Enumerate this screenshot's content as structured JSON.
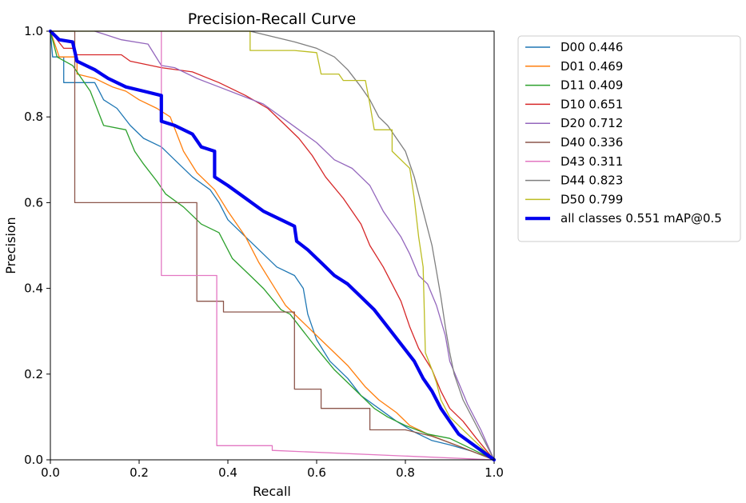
{
  "chart_data": {
    "type": "line",
    "title": "Precision-Recall Curve",
    "xlabel": "Recall",
    "ylabel": "Precision",
    "xlim": [
      0,
      1
    ],
    "ylim": [
      0,
      1
    ],
    "xticks": [
      "0.0",
      "0.2",
      "0.4",
      "0.6",
      "0.8",
      "1.0"
    ],
    "yticks": [
      "0.0",
      "0.2",
      "0.4",
      "0.6",
      "0.8",
      "1.0"
    ],
    "legend_position": "outside-right-top",
    "series": [
      {
        "name": "D00",
        "label": "D00 0.446",
        "ap": 0.446,
        "color": "#1f77b4",
        "width": 1.3,
        "points": [
          [
            0,
            1.0
          ],
          [
            0.005,
            0.94
          ],
          [
            0.03,
            0.94
          ],
          [
            0.03,
            0.88
          ],
          [
            0.1,
            0.88
          ],
          [
            0.12,
            0.84
          ],
          [
            0.15,
            0.82
          ],
          [
            0.18,
            0.78
          ],
          [
            0.21,
            0.75
          ],
          [
            0.25,
            0.73
          ],
          [
            0.28,
            0.7
          ],
          [
            0.32,
            0.66
          ],
          [
            0.36,
            0.63
          ],
          [
            0.38,
            0.6
          ],
          [
            0.4,
            0.56
          ],
          [
            0.44,
            0.52
          ],
          [
            0.48,
            0.48
          ],
          [
            0.51,
            0.45
          ],
          [
            0.55,
            0.43
          ],
          [
            0.57,
            0.4
          ],
          [
            0.58,
            0.34
          ],
          [
            0.6,
            0.28
          ],
          [
            0.63,
            0.23
          ],
          [
            0.67,
            0.19
          ],
          [
            0.7,
            0.15
          ],
          [
            0.74,
            0.12
          ],
          [
            0.78,
            0.09
          ],
          [
            0.82,
            0.065
          ],
          [
            0.86,
            0.045
          ],
          [
            0.9,
            0.035
          ],
          [
            0.95,
            0.02
          ],
          [
            1.0,
            0.0
          ]
        ]
      },
      {
        "name": "D01",
        "label": "D01 0.469",
        "ap": 0.469,
        "color": "#ff7f0e",
        "width": 1.3,
        "points": [
          [
            0,
            1.0
          ],
          [
            0.02,
            0.94
          ],
          [
            0.06,
            0.94
          ],
          [
            0.06,
            0.9
          ],
          [
            0.1,
            0.89
          ],
          [
            0.14,
            0.87
          ],
          [
            0.17,
            0.86
          ],
          [
            0.2,
            0.84
          ],
          [
            0.24,
            0.82
          ],
          [
            0.27,
            0.8
          ],
          [
            0.3,
            0.72
          ],
          [
            0.33,
            0.67
          ],
          [
            0.37,
            0.63
          ],
          [
            0.4,
            0.58
          ],
          [
            0.44,
            0.52
          ],
          [
            0.47,
            0.46
          ],
          [
            0.5,
            0.41
          ],
          [
            0.53,
            0.36
          ],
          [
            0.56,
            0.33
          ],
          [
            0.58,
            0.31
          ],
          [
            0.6,
            0.29
          ],
          [
            0.63,
            0.26
          ],
          [
            0.67,
            0.22
          ],
          [
            0.71,
            0.17
          ],
          [
            0.74,
            0.14
          ],
          [
            0.78,
            0.11
          ],
          [
            0.81,
            0.08
          ],
          [
            0.85,
            0.06
          ],
          [
            0.9,
            0.04
          ],
          [
            0.95,
            0.02
          ],
          [
            1.0,
            0.0
          ]
        ]
      },
      {
        "name": "D11",
        "label": "D11 0.409",
        "ap": 0.409,
        "color": "#2ca02c",
        "width": 1.3,
        "points": [
          [
            0,
            1.0
          ],
          [
            0.015,
            0.94
          ],
          [
            0.05,
            0.92
          ],
          [
            0.09,
            0.86
          ],
          [
            0.12,
            0.78
          ],
          [
            0.17,
            0.77
          ],
          [
            0.19,
            0.72
          ],
          [
            0.21,
            0.69
          ],
          [
            0.24,
            0.65
          ],
          [
            0.26,
            0.62
          ],
          [
            0.3,
            0.59
          ],
          [
            0.34,
            0.55
          ],
          [
            0.38,
            0.53
          ],
          [
            0.41,
            0.47
          ],
          [
            0.45,
            0.43
          ],
          [
            0.48,
            0.4
          ],
          [
            0.52,
            0.35
          ],
          [
            0.54,
            0.34
          ],
          [
            0.57,
            0.3
          ],
          [
            0.6,
            0.26
          ],
          [
            0.64,
            0.21
          ],
          [
            0.67,
            0.18
          ],
          [
            0.7,
            0.15
          ],
          [
            0.73,
            0.12
          ],
          [
            0.76,
            0.1
          ],
          [
            0.8,
            0.08
          ],
          [
            0.85,
            0.06
          ],
          [
            0.9,
            0.05
          ],
          [
            0.95,
            0.025
          ],
          [
            1.0,
            0.0
          ]
        ]
      },
      {
        "name": "D10",
        "label": "D10 0.651",
        "ap": 0.651,
        "color": "#d62728",
        "width": 1.3,
        "points": [
          [
            0,
            1.0
          ],
          [
            0.03,
            0.96
          ],
          [
            0.05,
            0.96
          ],
          [
            0.06,
            0.945
          ],
          [
            0.16,
            0.945
          ],
          [
            0.18,
            0.93
          ],
          [
            0.25,
            0.915
          ],
          [
            0.32,
            0.905
          ],
          [
            0.38,
            0.88
          ],
          [
            0.44,
            0.85
          ],
          [
            0.49,
            0.82
          ],
          [
            0.53,
            0.78
          ],
          [
            0.56,
            0.75
          ],
          [
            0.59,
            0.71
          ],
          [
            0.62,
            0.66
          ],
          [
            0.66,
            0.61
          ],
          [
            0.7,
            0.55
          ],
          [
            0.72,
            0.5
          ],
          [
            0.75,
            0.45
          ],
          [
            0.77,
            0.41
          ],
          [
            0.79,
            0.37
          ],
          [
            0.81,
            0.31
          ],
          [
            0.83,
            0.26
          ],
          [
            0.86,
            0.21
          ],
          [
            0.88,
            0.16
          ],
          [
            0.9,
            0.12
          ],
          [
            0.93,
            0.09
          ],
          [
            0.96,
            0.05
          ],
          [
            1.0,
            0.0
          ]
        ]
      },
      {
        "name": "D20",
        "label": "D20 0.712",
        "ap": 0.712,
        "color": "#9467bd",
        "width": 1.3,
        "points": [
          [
            0.1,
            1.0
          ],
          [
            0.16,
            0.98
          ],
          [
            0.22,
            0.97
          ],
          [
            0.25,
            0.92
          ],
          [
            0.28,
            0.915
          ],
          [
            0.33,
            0.89
          ],
          [
            0.38,
            0.87
          ],
          [
            0.43,
            0.85
          ],
          [
            0.48,
            0.83
          ],
          [
            0.52,
            0.8
          ],
          [
            0.56,
            0.77
          ],
          [
            0.6,
            0.74
          ],
          [
            0.64,
            0.7
          ],
          [
            0.68,
            0.68
          ],
          [
            0.7,
            0.66
          ],
          [
            0.72,
            0.64
          ],
          [
            0.75,
            0.58
          ],
          [
            0.77,
            0.55
          ],
          [
            0.79,
            0.52
          ],
          [
            0.81,
            0.48
          ],
          [
            0.83,
            0.43
          ],
          [
            0.85,
            0.41
          ],
          [
            0.87,
            0.36
          ],
          [
            0.89,
            0.29
          ],
          [
            0.9,
            0.23
          ],
          [
            0.92,
            0.18
          ],
          [
            0.94,
            0.13
          ],
          [
            0.97,
            0.07
          ],
          [
            1.0,
            0.0
          ]
        ]
      },
      {
        "name": "D40",
        "label": "D40 0.336",
        "ap": 0.336,
        "color": "#8c564b",
        "width": 1.3,
        "points": [
          [
            0,
            1.0
          ],
          [
            0.055,
            1.0
          ],
          [
            0.055,
            0.6
          ],
          [
            0.33,
            0.6
          ],
          [
            0.33,
            0.37
          ],
          [
            0.39,
            0.37
          ],
          [
            0.39,
            0.345
          ],
          [
            0.55,
            0.345
          ],
          [
            0.55,
            0.165
          ],
          [
            0.61,
            0.165
          ],
          [
            0.61,
            0.12
          ],
          [
            0.72,
            0.12
          ],
          [
            0.72,
            0.07
          ],
          [
            0.8,
            0.07
          ],
          [
            0.86,
            0.055
          ],
          [
            0.9,
            0.04
          ],
          [
            1.0,
            0.0
          ]
        ]
      },
      {
        "name": "D43",
        "label": "D43 0.311",
        "ap": 0.311,
        "color": "#e377c2",
        "width": 1.3,
        "points": [
          [
            0.25,
            1.0
          ],
          [
            0.25,
            0.43
          ],
          [
            0.375,
            0.43
          ],
          [
            0.375,
            0.033
          ],
          [
            0.5,
            0.033
          ],
          [
            0.5,
            0.022
          ],
          [
            1.0,
            0.0
          ]
        ]
      },
      {
        "name": "D44",
        "label": "D44 0.823",
        "ap": 0.823,
        "color": "#7f7f7f",
        "width": 1.3,
        "points": [
          [
            0,
            1.0
          ],
          [
            0.3,
            1.0
          ],
          [
            0.45,
            1.0
          ],
          [
            0.55,
            0.975
          ],
          [
            0.6,
            0.96
          ],
          [
            0.64,
            0.94
          ],
          [
            0.67,
            0.91
          ],
          [
            0.7,
            0.87
          ],
          [
            0.72,
            0.84
          ],
          [
            0.74,
            0.8
          ],
          [
            0.76,
            0.78
          ],
          [
            0.78,
            0.75
          ],
          [
            0.8,
            0.72
          ],
          [
            0.82,
            0.66
          ],
          [
            0.84,
            0.58
          ],
          [
            0.86,
            0.5
          ],
          [
            0.87,
            0.44
          ],
          [
            0.88,
            0.38
          ],
          [
            0.89,
            0.31
          ],
          [
            0.9,
            0.25
          ],
          [
            0.91,
            0.2
          ],
          [
            0.93,
            0.14
          ],
          [
            0.96,
            0.08
          ],
          [
            1.0,
            0.0
          ]
        ]
      },
      {
        "name": "D50",
        "label": "D50 0.799",
        "ap": 0.799,
        "color": "#bcbd22",
        "width": 1.3,
        "points": [
          [
            0,
            1.0
          ],
          [
            0.45,
            1.0
          ],
          [
            0.45,
            0.955
          ],
          [
            0.55,
            0.955
          ],
          [
            0.6,
            0.95
          ],
          [
            0.61,
            0.9
          ],
          [
            0.65,
            0.9
          ],
          [
            0.66,
            0.885
          ],
          [
            0.71,
            0.885
          ],
          [
            0.72,
            0.83
          ],
          [
            0.73,
            0.77
          ],
          [
            0.77,
            0.77
          ],
          [
            0.77,
            0.72
          ],
          [
            0.81,
            0.68
          ],
          [
            0.82,
            0.61
          ],
          [
            0.83,
            0.52
          ],
          [
            0.84,
            0.45
          ],
          [
            0.845,
            0.25
          ],
          [
            0.86,
            0.21
          ],
          [
            0.87,
            0.18
          ],
          [
            0.88,
            0.14
          ],
          [
            0.9,
            0.1
          ],
          [
            0.95,
            0.05
          ],
          [
            1.0,
            0.0
          ]
        ]
      },
      {
        "name": "all classes",
        "label": "all classes 0.551 mAP@0.5",
        "ap": 0.551,
        "color": "#0000ee",
        "width": 4.2,
        "points": [
          [
            0,
            1.0
          ],
          [
            0.02,
            0.98
          ],
          [
            0.05,
            0.975
          ],
          [
            0.06,
            0.93
          ],
          [
            0.08,
            0.92
          ],
          [
            0.1,
            0.91
          ],
          [
            0.13,
            0.89
          ],
          [
            0.17,
            0.87
          ],
          [
            0.21,
            0.86
          ],
          [
            0.25,
            0.85
          ],
          [
            0.25,
            0.79
          ],
          [
            0.28,
            0.78
          ],
          [
            0.32,
            0.76
          ],
          [
            0.34,
            0.73
          ],
          [
            0.37,
            0.72
          ],
          [
            0.37,
            0.66
          ],
          [
            0.4,
            0.64
          ],
          [
            0.44,
            0.61
          ],
          [
            0.48,
            0.58
          ],
          [
            0.52,
            0.56
          ],
          [
            0.55,
            0.545
          ],
          [
            0.555,
            0.51
          ],
          [
            0.58,
            0.49
          ],
          [
            0.61,
            0.46
          ],
          [
            0.64,
            0.43
          ],
          [
            0.67,
            0.41
          ],
          [
            0.7,
            0.38
          ],
          [
            0.73,
            0.35
          ],
          [
            0.76,
            0.31
          ],
          [
            0.79,
            0.27
          ],
          [
            0.82,
            0.23
          ],
          [
            0.84,
            0.19
          ],
          [
            0.86,
            0.16
          ],
          [
            0.88,
            0.12
          ],
          [
            0.9,
            0.09
          ],
          [
            0.92,
            0.06
          ],
          [
            0.96,
            0.03
          ],
          [
            1.0,
            0.0
          ]
        ]
      }
    ]
  }
}
